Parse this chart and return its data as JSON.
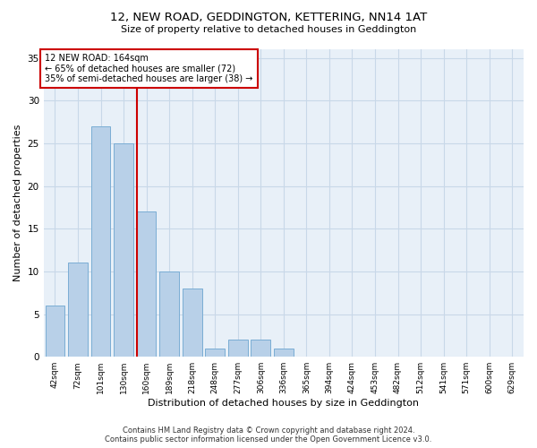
{
  "title": "12, NEW ROAD, GEDDINGTON, KETTERING, NN14 1AT",
  "subtitle": "Size of property relative to detached houses in Geddington",
  "xlabel": "Distribution of detached houses by size in Geddington",
  "ylabel": "Number of detached properties",
  "bar_labels": [
    "42sqm",
    "72sqm",
    "101sqm",
    "130sqm",
    "160sqm",
    "189sqm",
    "218sqm",
    "248sqm",
    "277sqm",
    "306sqm",
    "336sqm",
    "365sqm",
    "394sqm",
    "424sqm",
    "453sqm",
    "482sqm",
    "512sqm",
    "541sqm",
    "571sqm",
    "600sqm",
    "629sqm"
  ],
  "bar_values": [
    6,
    11,
    27,
    25,
    17,
    10,
    8,
    1,
    2,
    2,
    1,
    0,
    0,
    0,
    0,
    0,
    0,
    0,
    0,
    0,
    0
  ],
  "bar_color": "#b8d0e8",
  "bar_edgecolor": "#7aadd4",
  "property_line_label": "12 NEW ROAD: 164sqm",
  "annotation_line1": "← 65% of detached houses are smaller (72)",
  "annotation_line2": "35% of semi-detached houses are larger (38) →",
  "annotation_box_color": "#ffffff",
  "annotation_box_edgecolor": "#cc0000",
  "vline_color": "#cc0000",
  "grid_color": "#c8d8e8",
  "background_color": "#e8f0f8",
  "ylim": [
    0,
    36
  ],
  "yticks": [
    0,
    5,
    10,
    15,
    20,
    25,
    30,
    35
  ],
  "footer_line1": "Contains HM Land Registry data © Crown copyright and database right 2024.",
  "footer_line2": "Contains public sector information licensed under the Open Government Licence v3.0."
}
